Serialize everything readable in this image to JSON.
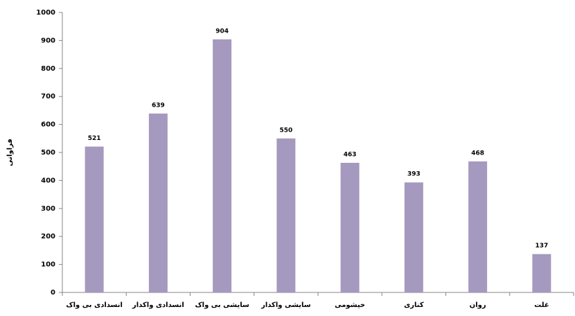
{
  "chart_data": {
    "type": "bar",
    "y_label": "فراوانی",
    "categories": [
      "انسدادی بی واک",
      "انسدادی واکدار",
      "سایشی بی واک",
      "سایشی واکدار",
      "خیشومی",
      "کناری",
      "روان",
      "غلت"
    ],
    "values": [
      521,
      639,
      904,
      550,
      463,
      393,
      468,
      137
    ],
    "color": "#a599bf",
    "ylim": [
      0,
      1000
    ],
    "yticks": [
      0,
      100,
      200,
      300,
      400,
      500,
      600,
      700,
      800,
      900,
      1000
    ],
    "grid": false,
    "data_labels": true
  }
}
